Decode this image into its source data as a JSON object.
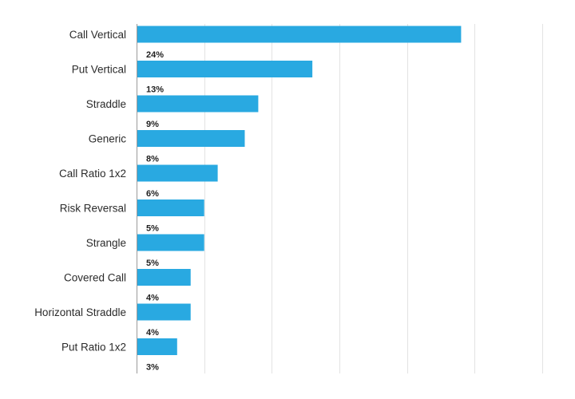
{
  "chart_data": {
    "type": "bar",
    "orientation": "horizontal",
    "title": "",
    "xlabel": "",
    "ylabel": "",
    "categories": [
      "Call Vertical",
      "Put Vertical",
      "Straddle",
      "Generic",
      "Call Ratio 1x2",
      "Risk Reversal",
      "Strangle",
      "Covered Call",
      "Horizontal Straddle",
      "Put Ratio 1x2"
    ],
    "values": [
      24,
      13,
      9,
      8,
      6,
      5,
      5,
      4,
      4,
      3
    ],
    "value_labels": [
      "24%",
      "13%",
      "9%",
      "8%",
      "6%",
      "5%",
      "5%",
      "4%",
      "4%",
      "3%"
    ],
    "xlim": [
      0,
      30
    ],
    "grid": true,
    "legend": "none",
    "bar_color": "#29a9e1"
  }
}
